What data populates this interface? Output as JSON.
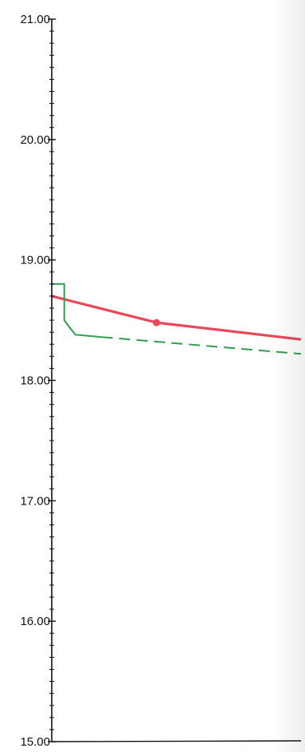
{
  "chart_data": {
    "type": "line",
    "ylim": [
      15,
      21
    ],
    "xlim": [
      0,
      1
    ],
    "y_ticks": [
      "15.00",
      "16.00",
      "17.00",
      "18.00",
      "19.00",
      "20.00",
      "21.00"
    ],
    "minor_ticks_per_major": 10,
    "grid": false,
    "series": [
      {
        "style": "solid",
        "color": "#e8485a",
        "points": [
          [
            0,
            18.7
          ],
          [
            0.42,
            18.48
          ],
          [
            1,
            18.34
          ]
        ],
        "markers": [
          [
            0.42,
            18.48
          ]
        ]
      },
      {
        "style": "solid",
        "color": "#2f9e4f",
        "points": [
          [
            0,
            18.8
          ],
          [
            0.05,
            18.8
          ],
          [
            0.05,
            18.5
          ],
          [
            0.075,
            18.43
          ],
          [
            0.095,
            18.38
          ],
          [
            0.2,
            18.36
          ]
        ]
      },
      {
        "style": "dashed",
        "color": "#2f9e4f",
        "points": [
          [
            0.2,
            18.36
          ],
          [
            1,
            18.22
          ]
        ]
      }
    ]
  }
}
